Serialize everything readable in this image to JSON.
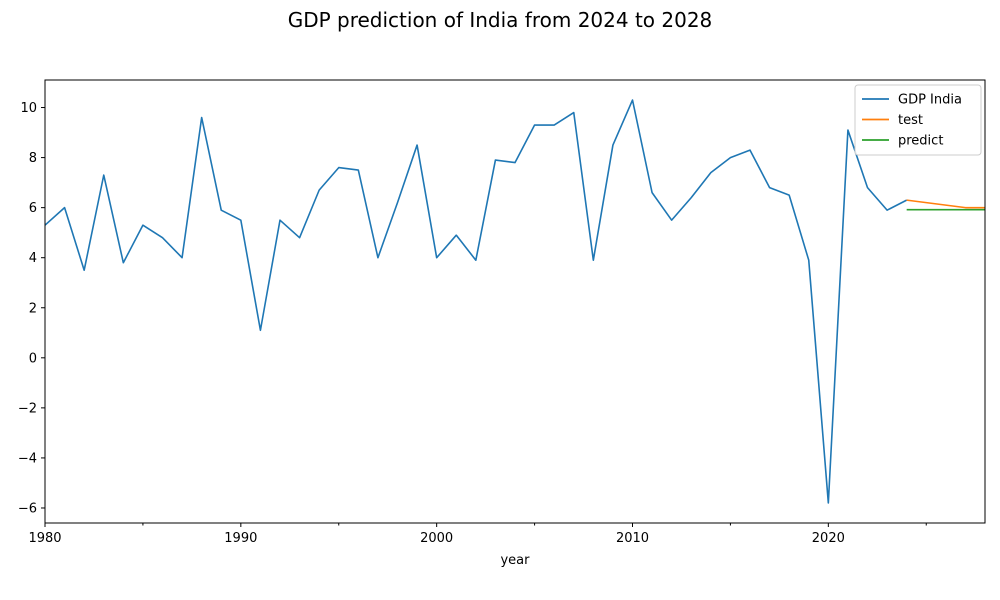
{
  "chart_data": {
    "type": "line",
    "title": "GDP prediction of India from 2024 to 2028",
    "xlabel": "year",
    "ylabel": "",
    "xlim": [
      1980,
      2028
    ],
    "ylim": [
      -6.6,
      11.1
    ],
    "x_ticks": [
      1980,
      1990,
      2000,
      2010,
      2020
    ],
    "x_minor_ticks": [
      1985,
      1995,
      2005,
      2015,
      2025
    ],
    "y_ticks": [
      -6,
      -4,
      -2,
      0,
      2,
      4,
      6,
      8,
      10
    ],
    "y_tick_labels": [
      "−6",
      "−4",
      "−2",
      "0",
      "2",
      "4",
      "6",
      "8",
      "10"
    ],
    "grid": false,
    "legend_position": "top-right",
    "series": [
      {
        "name": "GDP India",
        "color": "#1f77b4",
        "x": [
          1980,
          1981,
          1982,
          1983,
          1984,
          1985,
          1986,
          1987,
          1988,
          1989,
          1990,
          1991,
          1992,
          1993,
          1994,
          1995,
          1996,
          1997,
          1998,
          1999,
          2000,
          2001,
          2002,
          2003,
          2004,
          2005,
          2006,
          2007,
          2008,
          2009,
          2010,
          2011,
          2012,
          2013,
          2014,
          2015,
          2016,
          2017,
          2018,
          2019,
          2020,
          2021,
          2022,
          2023,
          2024
        ],
        "values": [
          5.3,
          6.0,
          3.5,
          7.3,
          3.8,
          5.3,
          4.8,
          4.0,
          9.6,
          5.9,
          5.5,
          1.1,
          5.5,
          4.8,
          6.7,
          7.6,
          7.5,
          4.0,
          6.2,
          8.5,
          4.0,
          4.9,
          3.9,
          7.9,
          7.8,
          9.3,
          9.3,
          9.8,
          3.9,
          8.5,
          10.3,
          6.6,
          5.5,
          6.4,
          7.4,
          8.0,
          8.3,
          6.8,
          6.5,
          3.9,
          -5.8,
          9.1,
          6.8,
          5.9,
          6.3
        ]
      },
      {
        "name": "test",
        "color": "#ff7f0e",
        "x": [
          2024,
          2025,
          2026,
          2027,
          2028
        ],
        "values": [
          6.3,
          6.2,
          6.1,
          6.0,
          6.0
        ]
      },
      {
        "name": "predict",
        "color": "#2ca02c",
        "x": [
          2024,
          2025,
          2026,
          2027,
          2028
        ],
        "values": [
          5.92,
          5.92,
          5.92,
          5.92,
          5.92
        ]
      }
    ]
  }
}
